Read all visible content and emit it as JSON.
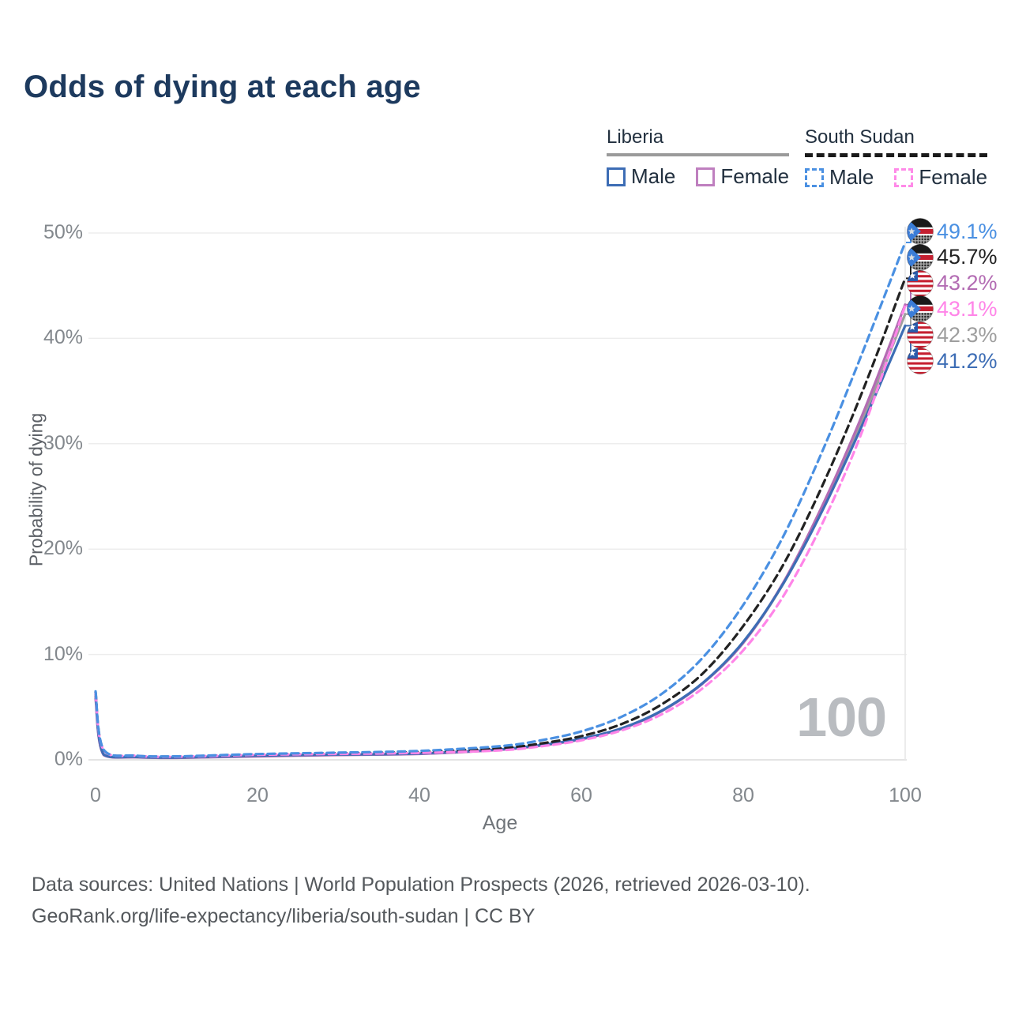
{
  "title": "Odds of dying at each age",
  "watermark_age": "100",
  "legend": {
    "groups": [
      {
        "country": "Liberia",
        "line_style": "solid",
        "underline_color": "#9a9a9a",
        "items": [
          {
            "label": "Male",
            "color": "#3d6db5",
            "dashed": false
          },
          {
            "label": "Female",
            "color": "#bf7fbf",
            "dashed": false
          }
        ]
      },
      {
        "country": "South Sudan",
        "line_style": "dashed",
        "underline_color": "#1a1a1a",
        "items": [
          {
            "label": "Male",
            "color": "#4a90e2",
            "dashed": true
          },
          {
            "label": "Female",
            "color": "#ff8ae8",
            "dashed": true
          }
        ]
      }
    ]
  },
  "chart_data": {
    "type": "line",
    "title": "Odds of dying at each age",
    "xlabel": "Age",
    "ylabel": "Probability of dying",
    "xlim": [
      0,
      100
    ],
    "ylim": [
      0,
      50
    ],
    "grid": "horizontal",
    "legend_position": "top-right",
    "x_ticks": [
      {
        "label": "0",
        "value": 0
      },
      {
        "label": "20",
        "value": 20
      },
      {
        "label": "40",
        "value": 40
      },
      {
        "label": "60",
        "value": 60
      },
      {
        "label": "80",
        "value": 80
      },
      {
        "label": "100",
        "value": 100
      }
    ],
    "y_ticks": [
      {
        "label": "0%",
        "value": 0
      },
      {
        "label": "10%",
        "value": 10
      },
      {
        "label": "20%",
        "value": 20
      },
      {
        "label": "30%",
        "value": 30
      },
      {
        "label": "40%",
        "value": 40
      },
      {
        "label": "50%",
        "value": 50
      }
    ],
    "cursor_age": 100,
    "x": [
      0,
      1,
      5,
      10,
      20,
      30,
      40,
      50,
      55,
      60,
      65,
      70,
      75,
      80,
      85,
      90,
      95,
      100
    ],
    "series": [
      {
        "name": "Liberia Both sexes",
        "country": "Liberia",
        "flag": "liberia",
        "color": "#9e9e9e",
        "dashed": false,
        "end_value": 42.3,
        "end_label": "42.3%",
        "label_row": 4,
        "values": [
          6.0,
          0.48,
          0.26,
          0.2,
          0.36,
          0.48,
          0.58,
          0.97,
          1.37,
          1.97,
          2.97,
          4.67,
          7.27,
          11.1,
          16.8,
          24.2,
          32.8,
          42.3
        ]
      },
      {
        "name": "Liberia Female",
        "country": "Liberia",
        "flag": "liberia",
        "color": "#b36cb3",
        "dashed": false,
        "end_value": 43.2,
        "end_label": "43.2%",
        "label_row": 2,
        "values": [
          5.8,
          0.45,
          0.24,
          0.19,
          0.33,
          0.46,
          0.56,
          0.95,
          1.35,
          1.95,
          2.95,
          4.65,
          7.25,
          11.1,
          16.9,
          24.5,
          33.3,
          43.2
        ]
      },
      {
        "name": "Liberia Male",
        "country": "Liberia",
        "flag": "liberia",
        "color": "#3d6db5",
        "dashed": false,
        "end_value": 41.2,
        "end_label": "41.2%",
        "label_row": 5,
        "values": [
          6.2,
          0.5,
          0.27,
          0.22,
          0.4,
          0.5,
          0.6,
          1.0,
          1.4,
          2.0,
          3.0,
          4.7,
          7.3,
          11.2,
          16.8,
          24.0,
          32.3,
          41.2
        ]
      },
      {
        "name": "South Sudan Both sexes",
        "country": "South Sudan",
        "flag": "south-sudan",
        "color": "#222222",
        "dashed": true,
        "end_value": 45.7,
        "end_label": "45.7%",
        "label_row": 1,
        "values": [
          6.4,
          0.92,
          0.39,
          0.31,
          0.51,
          0.62,
          0.75,
          1.1,
          1.55,
          2.25,
          3.4,
          5.3,
          8.2,
          12.7,
          18.6,
          26.4,
          35.5,
          45.7
        ]
      },
      {
        "name": "South Sudan Female",
        "country": "South Sudan",
        "flag": "south-sudan",
        "color": "#ff85e8",
        "dashed": true,
        "end_value": 43.1,
        "end_label": "43.1%",
        "label_row": 3,
        "values": [
          6.3,
          0.9,
          0.38,
          0.3,
          0.48,
          0.56,
          0.66,
          0.9,
          1.28,
          1.85,
          2.8,
          4.35,
          6.8,
          10.4,
          15.6,
          22.8,
          31.8,
          43.1
        ]
      },
      {
        "name": "South Sudan Male",
        "country": "South Sudan",
        "flag": "south-sudan",
        "color": "#4a90e2",
        "dashed": true,
        "end_value": 49.1,
        "end_label": "49.1%",
        "label_row": 0,
        "values": [
          6.5,
          0.95,
          0.4,
          0.33,
          0.55,
          0.68,
          0.85,
          1.3,
          1.85,
          2.7,
          4.1,
          6.3,
          9.7,
          14.7,
          21.3,
          29.7,
          39.2,
          49.1
        ]
      }
    ]
  },
  "footer": {
    "line1": "Data sources: United Nations | World Population Prospects (2026, retrieved 2026-03-10).",
    "line2": "GeoRank.org/life-expectancy/liberia/south-sudan | CC BY"
  },
  "colors": {
    "title": "#1d3a5e",
    "axis_text": "#83888d",
    "grid": "#ededed",
    "baseline": "#dcdcdc",
    "watermark": "#b9bcc0",
    "footer": "#54585c"
  }
}
